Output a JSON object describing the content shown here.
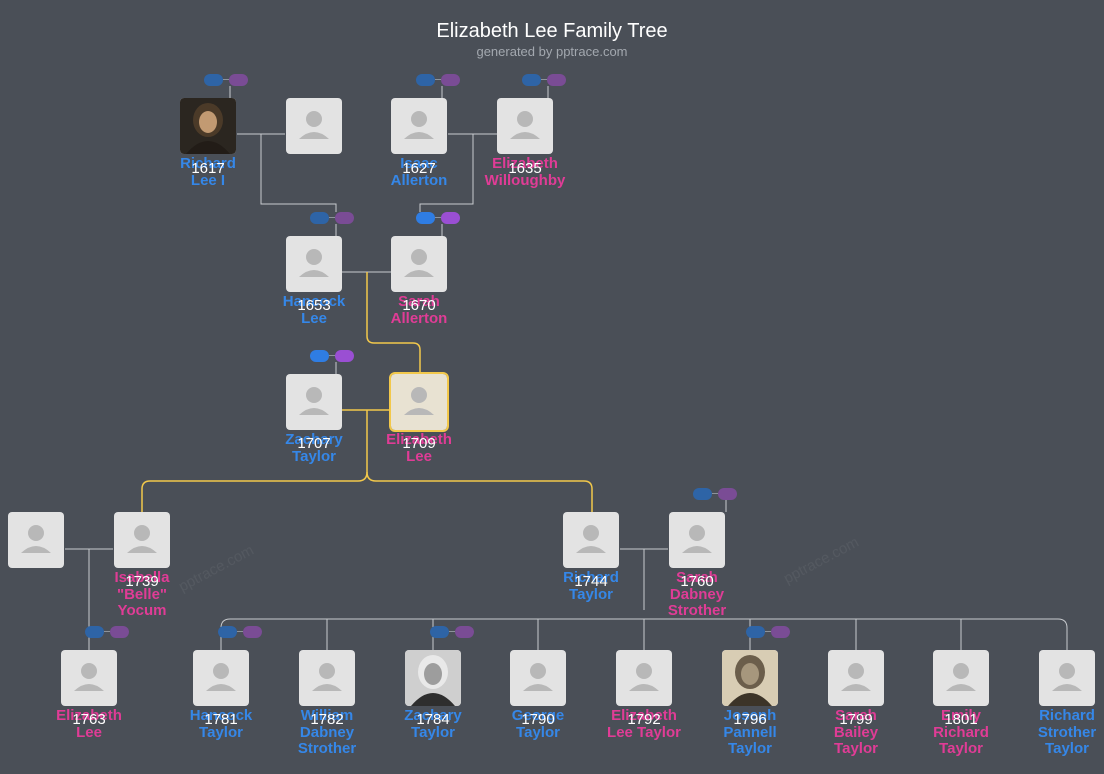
{
  "header": {
    "title": "Elizabeth Lee Family Tree",
    "subtitle": "generated by pptrace.com"
  },
  "watermark": "pptrace.com",
  "colors": {
    "background": "#4a4f57",
    "male": "#3587e8",
    "female": "#e03c96",
    "line": "#c8cbcf",
    "highlight": "#f2c84b",
    "card": "#e3e3e3"
  },
  "people": [
    {
      "id": "p1",
      "lines": [
        "Richard",
        "Lee I"
      ],
      "year": "1617",
      "sex": "male",
      "photo": "portrait-richard-lee"
    },
    {
      "id": "p2",
      "lines": [],
      "year": "",
      "sex": "female",
      "photo": ""
    },
    {
      "id": "p3",
      "lines": [
        "Isaac",
        "Allerton"
      ],
      "year": "1627",
      "sex": "male",
      "photo": ""
    },
    {
      "id": "p4",
      "lines": [
        "Elizabeth",
        "Willoughby"
      ],
      "year": "1635",
      "sex": "female",
      "photo": ""
    },
    {
      "id": "p5",
      "lines": [
        "Hancock",
        "Lee"
      ],
      "year": "1653",
      "sex": "male",
      "photo": ""
    },
    {
      "id": "p6",
      "lines": [
        "Sarah",
        "Allerton"
      ],
      "year": "1670",
      "sex": "female",
      "photo": ""
    },
    {
      "id": "p7",
      "lines": [
        "Zachary",
        "Taylor"
      ],
      "year": "1707",
      "sex": "male",
      "photo": ""
    },
    {
      "id": "p8",
      "lines": [
        "Elizabeth",
        "Lee"
      ],
      "year": "1709",
      "sex": "female",
      "photo": "",
      "root": true
    },
    {
      "id": "p9",
      "lines": [],
      "year": "",
      "sex": "male",
      "photo": ""
    },
    {
      "id": "p10",
      "lines": [
        "Isabella",
        "\"Belle\"",
        "Yocum"
      ],
      "year": "1739",
      "sex": "female",
      "photo": ""
    },
    {
      "id": "p11",
      "lines": [
        "Richard",
        "Taylor"
      ],
      "year": "1744",
      "sex": "male",
      "photo": ""
    },
    {
      "id": "p12",
      "lines": [
        "Sarah",
        "Dabney",
        "Strother"
      ],
      "year": "1760",
      "sex": "female",
      "photo": ""
    },
    {
      "id": "p13",
      "lines": [
        "Elizabeth",
        "Lee"
      ],
      "year": "1763",
      "sex": "female",
      "photo": ""
    },
    {
      "id": "p14",
      "lines": [
        "Hancock",
        "Taylor"
      ],
      "year": "1781",
      "sex": "male",
      "photo": ""
    },
    {
      "id": "p15",
      "lines": [
        "William",
        "Dabney",
        "Strother"
      ],
      "year": "1782",
      "sex": "male",
      "photo": ""
    },
    {
      "id": "p16",
      "lines": [
        "Zachary",
        "Taylor"
      ],
      "year": "1784",
      "sex": "male",
      "photo": "portrait-zachary-taylor"
    },
    {
      "id": "p17",
      "lines": [
        "George",
        "Taylor"
      ],
      "year": "1790",
      "sex": "male",
      "photo": ""
    },
    {
      "id": "p18",
      "lines": [
        "Elizabeth",
        "Lee Taylor"
      ],
      "year": "1792",
      "sex": "female",
      "photo": ""
    },
    {
      "id": "p19",
      "lines": [
        "Joseph",
        "Pannell",
        "Taylor"
      ],
      "year": "1796",
      "sex": "male",
      "photo": "portrait-joseph-taylor"
    },
    {
      "id": "p20",
      "lines": [
        "Sarah",
        "Bailey",
        "Taylor"
      ],
      "year": "1799",
      "sex": "female",
      "photo": ""
    },
    {
      "id": "p21",
      "lines": [
        "Emily",
        "Richard",
        "Taylor"
      ],
      "year": "1801",
      "sex": "female",
      "photo": ""
    },
    {
      "id": "p22",
      "lines": [
        "Richard",
        "Strother",
        "Taylor"
      ],
      "year": "",
      "sex": "male",
      "photo": ""
    }
  ]
}
